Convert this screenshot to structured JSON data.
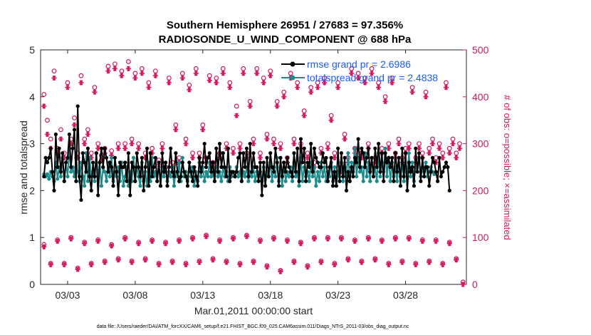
{
  "chart_data": {
    "type": "line",
    "title": "Southern Hemisphere 26951 / 27683 = 97.356%",
    "subtitle": "RADIOSONDE_U_WIND_COMPONENT @ 688 hPa",
    "ylabel": "rmse and totalspread",
    "ylabel_right": "# of obs: o=possible; ×=assimilated",
    "xlabel": "Mar.01,2011 00:00:00 start",
    "footer": "data file: /Users/raeder/DAI/ATM_forcXX/CAM6_setup/f.e21.FHIST_BGC.f09_025.CAM6assim.011/Diags_NTrS_2011-03/obs_diag_output.nc",
    "ylim": [
      0,
      5
    ],
    "ylim_right": [
      0,
      500
    ],
    "xlim": [
      1,
      32.5
    ],
    "yticks": [
      "0",
      "1",
      "2",
      "3",
      "4",
      "5"
    ],
    "yticks_right": [
      "0",
      "100",
      "200",
      "300",
      "400",
      "500"
    ],
    "xticks": [
      {
        "x": 3,
        "label": "03/03"
      },
      {
        "x": 8,
        "label": "03/08"
      },
      {
        "x": 13,
        "label": "03/13"
      },
      {
        "x": 18,
        "label": "03/18"
      },
      {
        "x": 23,
        "label": "03/23"
      },
      {
        "x": 28,
        "label": "03/28"
      }
    ],
    "legend": [
      {
        "label": "rmse grand pr = 2.6986",
        "color": "#000000"
      },
      {
        "label": "totalspread grand pr = 2.4838",
        "color": "#1a8a8a"
      }
    ],
    "series": [
      {
        "name": "rmse",
        "color": "#000000",
        "values": [
          2.3,
          2.7,
          2.6,
          2.7,
          2.9,
          2.4,
          2.0,
          3.2,
          2.5,
          2.9,
          2.4,
          2.8,
          2.2,
          2.6,
          2.7,
          3.2,
          2.5,
          2.9,
          3.3,
          2.2,
          3.8,
          2.3,
          1.8,
          2.8,
          2.6,
          2.4,
          2.9,
          2.3,
          2.0,
          2.6,
          2.3,
          2.8,
          1.9,
          2.6,
          2.9,
          2.5,
          2.9,
          2.7,
          2.4,
          2.6,
          2.5,
          2.1,
          2.7,
          2.4,
          1.9,
          2.6,
          2.5,
          2.5,
          2.6,
          2.2,
          2.8,
          1.9,
          2.6,
          2.5,
          2.2,
          2.8,
          2.5,
          2.3,
          2.7,
          2.0,
          2.5,
          2.9,
          2.1,
          2.8,
          2.3,
          2.5,
          2.7,
          2.2,
          2.6,
          2.1,
          2.8,
          2.4,
          2.6,
          2.1,
          2.5,
          2.9,
          2.4,
          2.3,
          2.8,
          2.4,
          2.2,
          2.3,
          2.6,
          2.4,
          2.3,
          2.1,
          2.6,
          2.4,
          2.2,
          2.5,
          2.3,
          2.1,
          2.7,
          2.4,
          2.6,
          3.0,
          2.5,
          2.7,
          2.8,
          2.4,
          2.6,
          2.2,
          2.9,
          2.4,
          3.0,
          2.5,
          2.8,
          2.5,
          2.3,
          2.9,
          2.2,
          2.4,
          2.4,
          2.3,
          2.4,
          2.7,
          2.8,
          2.2,
          2.8,
          2.5,
          2.9,
          2.3,
          3.0,
          2.4,
          2.8,
          2.5,
          2.5,
          2.2,
          2.6,
          1.9,
          2.6,
          2.1,
          2.7,
          2.3,
          2.8,
          2.5,
          2.4,
          2.9,
          2.6,
          2.1,
          2.7,
          2.3,
          2.6,
          2.4,
          2.7,
          2.5,
          2.4,
          2.3,
          2.8,
          2.4,
          2.9,
          2.2,
          3.1,
          2.6,
          2.9,
          2.2,
          2.6,
          2.5,
          3.0,
          2.4,
          2.9,
          2.7,
          2.6,
          2.5,
          2.5,
          2.8,
          2.6,
          2.7,
          2.2,
          2.5,
          2.7,
          2.1,
          2.4,
          2.1,
          2.9,
          2.2,
          2.8,
          2.3,
          2.7,
          2.0,
          2.4,
          2.2,
          2.5,
          2.3,
          2.7,
          2.6,
          3.1,
          2.5,
          2.9,
          2.8,
          2.5,
          2.7,
          2.9,
          2.4,
          2.7,
          2.3,
          2.9,
          2.5,
          3.0,
          2.4,
          2.8,
          2.2,
          2.8,
          2.6,
          2.7,
          2.5,
          2.7,
          2.2,
          2.8,
          2.4,
          2.7,
          2.1,
          2.9,
          2.3,
          2.8,
          2.0,
          2.6,
          2.4,
          2.5,
          2.1,
          2.9,
          2.4,
          2.8,
          2.2,
          2.7,
          2.3,
          2.5,
          2.5,
          2.1,
          2.4,
          2.7,
          2.6,
          2.4,
          2.2,
          2.7,
          2.3,
          2.4,
          2.5,
          2.6,
          2.5,
          2.0
        ],
        "x_start": 1.25,
        "x_step": 0.125
      },
      {
        "name": "totalspread",
        "color": "#1a8a8a",
        "values": [
          2.35,
          2.3,
          2.35,
          2.25,
          2.4,
          2.3,
          2.2,
          2.6,
          2.25,
          2.5,
          2.3,
          2.7,
          2.2,
          2.6,
          2.3,
          2.9,
          2.4,
          2.5,
          2.3,
          2.7,
          2.4,
          2.2,
          2.6,
          2.3,
          2.1,
          2.8,
          2.2,
          2.7,
          2.3,
          2.4,
          2.2,
          2.8,
          2.3,
          2.6,
          2.1,
          2.5,
          2.4,
          2.2,
          2.6,
          2.3,
          2.7,
          2.2,
          2.4,
          2.3,
          2.5,
          2.2,
          2.6,
          2.1,
          2.3,
          2.5,
          2.1,
          2.4,
          2.2,
          2.7,
          2.2,
          2.5,
          2.3,
          2.1,
          2.6,
          2.2,
          2.4,
          2.1,
          2.6,
          2.2,
          2.7,
          2.3,
          2.4,
          2.2,
          2.6,
          2.1,
          2.5,
          2.3,
          2.6,
          2.2,
          2.4,
          2.3,
          2.5,
          2.1,
          2.4,
          2.3,
          2.6,
          2.2,
          2.7,
          2.3,
          2.4,
          2.2,
          2.6,
          2.3,
          2.5,
          2.1,
          2.4,
          2.2,
          2.6,
          2.3,
          2.5,
          2.2,
          2.4,
          2.3,
          2.6,
          2.3,
          2.4,
          2.2,
          2.5,
          2.3,
          2.4,
          2.2,
          2.5,
          2.3,
          2.4,
          2.2,
          2.5,
          2.3,
          2.4,
          2.3,
          2.5,
          2.3,
          2.4,
          2.2,
          2.4,
          2.3,
          2.5,
          2.2,
          2.4,
          2.3,
          2.5,
          2.2,
          2.4,
          2.3,
          2.4,
          2.2,
          2.5,
          2.1,
          2.4,
          2.3,
          2.6,
          2.2,
          2.5,
          2.3,
          2.7,
          2.2,
          2.5,
          2.1,
          2.6,
          2.2,
          2.4,
          2.3,
          2.5,
          2.2,
          2.6,
          2.3,
          2.4,
          2.1,
          2.7,
          2.2,
          2.5,
          2.3,
          2.4,
          2.2,
          2.6,
          2.3,
          2.5,
          2.1,
          2.4,
          2.2,
          2.6,
          2.3,
          2.5,
          2.2,
          2.4,
          2.3,
          2.6,
          2.2,
          2.5,
          2.1,
          2.4,
          2.3,
          2.6,
          2.2,
          2.5,
          2.3,
          2.8,
          2.2,
          2.6,
          2.4,
          2.9,
          2.3,
          2.7,
          2.4,
          2.5,
          2.2,
          2.8,
          2.3,
          2.6,
          2.2,
          2.7,
          2.3,
          2.5,
          2.2,
          2.8,
          2.3,
          2.6,
          2.4,
          2.9,
          2.3,
          2.7,
          2.2,
          2.6,
          2.3,
          2.5,
          2.2,
          2.7,
          2.3,
          2.6,
          2.2,
          2.5,
          2.4,
          2.8,
          2.3,
          2.6,
          2.2,
          2.5,
          2.4,
          2.7,
          2.3,
          2.5,
          2.4,
          2.6,
          2.3,
          2.4,
          2.5,
          2.4,
          2.35
        ],
        "x_start": 1.25,
        "x_step": 0.125
      }
    ],
    "obs_possible_upper": {
      "x": [
        1.25,
        1.5,
        1.75,
        2.0,
        2.25,
        2.5,
        2.75,
        3.0,
        3.25,
        3.5,
        3.75,
        4.0,
        4.25,
        4.5,
        4.75,
        5.0,
        5.25,
        5.5,
        5.75,
        6.0,
        6.25,
        6.5,
        6.75,
        7.0,
        7.25,
        7.5,
        7.75,
        8.0,
        8.25,
        8.5,
        8.75,
        9.0,
        9.25,
        9.5,
        9.75,
        10.0,
        10.25,
        10.5,
        10.75,
        11.0,
        11.25,
        11.5,
        11.75,
        12.0,
        12.25,
        12.5,
        12.75,
        13.0,
        13.25,
        13.5,
        13.75,
        14.0,
        14.25,
        14.5,
        14.75,
        15.0,
        15.25,
        15.5,
        15.75,
        16.0,
        16.25,
        16.5,
        16.75,
        17.0,
        17.25,
        17.5,
        17.75,
        18.0,
        18.25,
        18.5,
        18.75,
        19.0,
        19.25,
        19.5,
        19.75,
        20.0,
        20.25,
        20.5,
        20.75,
        21.0,
        21.25,
        21.5,
        21.75,
        22.0,
        22.25,
        22.5,
        22.75,
        23.0,
        23.25,
        23.5,
        23.75,
        24.0,
        24.25,
        24.5,
        24.75,
        25.0,
        25.25,
        25.5,
        25.75,
        26.0,
        26.25,
        26.5,
        26.75,
        27.0,
        27.25,
        27.5,
        27.75,
        28.0,
        28.25,
        28.5,
        28.75,
        29.0,
        29.25,
        29.5,
        29.75,
        30.0,
        30.25,
        30.5,
        30.75,
        31.0,
        31.25,
        31.5,
        31.75,
        32.0
      ],
      "values": [
        405,
        350,
        310,
        455,
        290,
        330,
        280,
        430,
        310,
        355,
        280,
        445,
        310,
        330,
        280,
        420,
        300,
        275,
        290,
        465,
        285,
        470,
        300,
        455,
        300,
        475,
        310,
        450,
        300,
        460,
        280,
        430,
        290,
        455,
        265,
        300,
        250,
        440,
        260,
        340,
        270,
        450,
        310,
        425,
        280,
        460,
        280,
        340,
        270,
        445,
        260,
        440,
        280,
        460,
        300,
        430,
        290,
        380,
        300,
        460,
        280,
        390,
        310,
        460,
        280,
        440,
        320,
        455,
        310,
        390,
        300,
        410,
        270,
        450,
        310,
        430,
        300,
        370,
        280,
        420,
        260,
        430,
        290,
        440,
        300,
        360,
        280,
        430,
        250,
        320,
        270,
        460,
        290,
        450,
        280,
        440,
        300,
        460,
        270,
        430,
        290,
        400,
        300,
        440,
        280,
        310,
        270,
        290,
        300,
        420,
        270,
        300,
        280,
        410,
        290,
        310,
        270,
        300,
        280,
        430,
        290,
        310,
        280,
        300
      ]
    },
    "obs_assimilated_upper": {
      "x": [
        1.25,
        1.5,
        1.75,
        2.0,
        2.25,
        2.5,
        2.75,
        3.0,
        3.25,
        3.5,
        3.75,
        4.0,
        4.25,
        4.5,
        4.75,
        5.0,
        5.25,
        5.5,
        5.75,
        6.0,
        6.25,
        6.5,
        6.75,
        7.0,
        7.25,
        7.5,
        7.75,
        8.0,
        8.25,
        8.5,
        8.75,
        9.0,
        9.25,
        9.5,
        9.75,
        10.0,
        10.25,
        10.5,
        10.75,
        11.0,
        11.25,
        11.5,
        11.75,
        12.0,
        12.25,
        12.5,
        12.75,
        13.0,
        13.25,
        13.5,
        13.75,
        14.0,
        14.25,
        14.5,
        14.75,
        15.0,
        15.25,
        15.5,
        15.75,
        16.0,
        16.25,
        16.5,
        16.75,
        17.0,
        17.25,
        17.5,
        17.75,
        18.0,
        18.25,
        18.5,
        18.75,
        19.0,
        19.25,
        19.5,
        19.75,
        20.0,
        20.25,
        20.5,
        20.75,
        21.0,
        21.25,
        21.5,
        21.75,
        22.0,
        22.25,
        22.5,
        22.75,
        23.0,
        23.25,
        23.5,
        23.75,
        24.0,
        24.25,
        24.5,
        24.75,
        25.0,
        25.25,
        25.5,
        25.75,
        26.0,
        26.25,
        26.5,
        26.75,
        27.0,
        27.25,
        27.5,
        27.75,
        28.0,
        28.25,
        28.5,
        28.75,
        29.0,
        29.25,
        29.5,
        29.75,
        30.0,
        30.25,
        30.5,
        30.75,
        31.0,
        31.25,
        31.5,
        31.75,
        32.0
      ],
      "values": [
        380,
        320,
        290,
        440,
        280,
        310,
        270,
        420,
        300,
        340,
        270,
        430,
        300,
        320,
        270,
        410,
        290,
        265,
        280,
        455,
        275,
        460,
        290,
        445,
        290,
        460,
        300,
        440,
        290,
        450,
        270,
        420,
        280,
        445,
        255,
        290,
        240,
        430,
        250,
        330,
        260,
        440,
        300,
        415,
        270,
        450,
        270,
        330,
        260,
        435,
        250,
        430,
        270,
        450,
        290,
        420,
        280,
        360,
        290,
        450,
        270,
        380,
        300,
        450,
        270,
        430,
        310,
        445,
        300,
        380,
        290,
        400,
        260,
        440,
        300,
        420,
        290,
        360,
        270,
        410,
        250,
        420,
        280,
        430,
        290,
        350,
        270,
        420,
        240,
        310,
        260,
        450,
        280,
        440,
        270,
        430,
        290,
        450,
        260,
        420,
        280,
        390,
        290,
        430,
        270,
        300,
        260,
        280,
        290,
        410,
        260,
        290,
        270,
        400,
        280,
        300,
        260,
        290,
        270,
        420,
        280,
        300,
        270,
        290
      ]
    },
    "obs_possible_lower": {
      "x": [
        1.25,
        1.75,
        2.25,
        2.75,
        3.25,
        3.75,
        4.25,
        4.75,
        5.25,
        5.75,
        6.25,
        6.75,
        7.25,
        7.75,
        8.25,
        8.75,
        9.25,
        9.75,
        10.25,
        10.75,
        11.25,
        11.75,
        12.25,
        12.75,
        13.25,
        13.75,
        14.25,
        14.75,
        15.25,
        15.75,
        16.25,
        16.75,
        17.25,
        17.75,
        18.25,
        18.75,
        19.25,
        19.75,
        20.25,
        20.75,
        21.25,
        21.75,
        22.25,
        22.75,
        23.25,
        23.75,
        24.25,
        24.75,
        25.25,
        25.75,
        26.25,
        26.75,
        27.25,
        27.75,
        28.25,
        28.75,
        29.25,
        29.75,
        30.25,
        30.75,
        31.25,
        31.75,
        32.25
      ],
      "values": [
        85,
        45,
        95,
        45,
        100,
        35,
        90,
        45,
        95,
        50,
        85,
        55,
        100,
        50,
        90,
        55,
        95,
        45,
        90,
        50,
        95,
        45,
        100,
        50,
        105,
        55,
        95,
        50,
        100,
        45,
        105,
        50,
        95,
        40,
        100,
        30,
        95,
        50,
        90,
        40,
        100,
        50,
        100,
        45,
        100,
        55,
        95,
        50,
        100,
        55,
        95,
        45,
        100,
        50,
        100,
        45,
        95,
        50,
        95,
        45,
        90,
        55,
        5
      ]
    },
    "obs_assimilated_lower": {
      "x": [
        1.25,
        1.75,
        2.25,
        2.75,
        3.25,
        3.75,
        4.25,
        4.75,
        5.25,
        5.75,
        6.25,
        6.75,
        7.25,
        7.75,
        8.25,
        8.75,
        9.25,
        9.75,
        10.25,
        10.75,
        11.25,
        11.75,
        12.25,
        12.75,
        13.25,
        13.75,
        14.25,
        14.75,
        15.25,
        15.75,
        16.25,
        16.75,
        17.25,
        17.75,
        18.25,
        18.75,
        19.25,
        19.75,
        20.25,
        20.75,
        21.25,
        21.75,
        22.25,
        22.75,
        23.25,
        23.75,
        24.25,
        24.75,
        25.25,
        25.75,
        26.25,
        26.75,
        27.25,
        27.75,
        28.25,
        28.75,
        29.25,
        29.75,
        30.25,
        30.75,
        31.25,
        31.75,
        32.25
      ],
      "values": [
        80,
        42,
        92,
        42,
        97,
        32,
        87,
        42,
        92,
        47,
        82,
        52,
        97,
        47,
        87,
        52,
        92,
        42,
        87,
        47,
        92,
        42,
        97,
        47,
        102,
        52,
        92,
        47,
        97,
        42,
        102,
        47,
        92,
        37,
        97,
        27,
        92,
        47,
        87,
        37,
        97,
        47,
        97,
        42,
        97,
        52,
        92,
        47,
        97,
        52,
        92,
        42,
        97,
        47,
        97,
        42,
        92,
        47,
        92,
        42,
        87,
        52,
        0
      ]
    }
  }
}
